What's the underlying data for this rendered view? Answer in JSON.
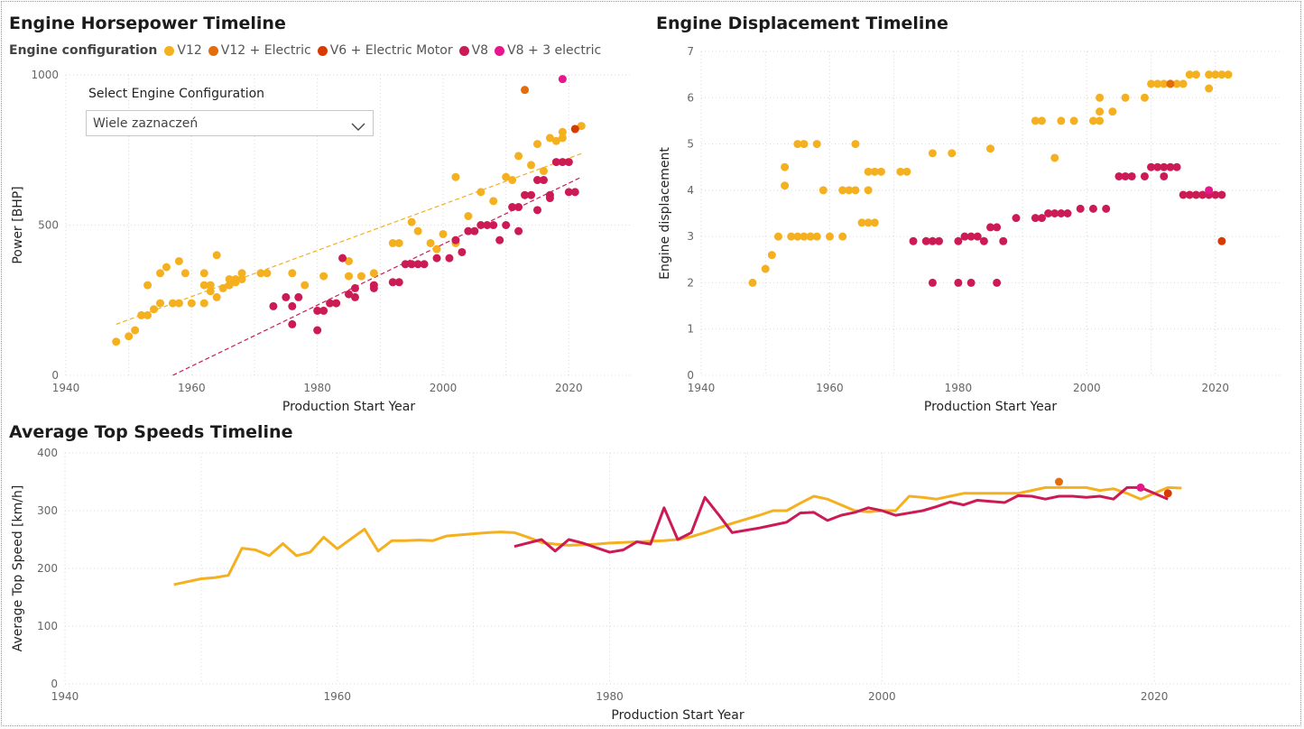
{
  "colors": {
    "V12": "#f5b01f",
    "V12 + Electric": "#e46c0a",
    "V6 + Electric Motor": "#d83b01",
    "V8": "#cc1a55",
    "V8 + 3 electric": "#e8168c"
  },
  "legend": {
    "title": "Engine configuration",
    "items": [
      "V12",
      "V12 + Electric",
      "V6 + Electric Motor",
      "V8",
      "V8 + 3 electric"
    ]
  },
  "slicer": {
    "title": "Select Engine Configuration",
    "value": "Wiele zaznaczeń",
    "icon": "chevron-down-icon"
  },
  "chart_data": [
    {
      "type": "scatter",
      "title": "Engine Horsepower Timeline",
      "xlabel": "Production Start Year",
      "ylabel": "Power [BHP]",
      "xlim": [
        1940,
        2030
      ],
      "ylim": [
        0,
        1000
      ],
      "xticks": [
        1940,
        1960,
        1980,
        2000,
        2020
      ],
      "yticks": [
        0,
        500,
        1000
      ],
      "grid": true,
      "legend_position": "top-left",
      "series": [
        {
          "name": "V12",
          "x": [
            1948,
            1950,
            1951,
            1952,
            1953,
            1953,
            1954,
            1955,
            1955,
            1956,
            1957,
            1958,
            1958,
            1959,
            1960,
            1962,
            1962,
            1962,
            1963,
            1963,
            1964,
            1964,
            1965,
            1966,
            1966,
            1967,
            1967,
            1968,
            1968,
            1971,
            1972,
            1976,
            1978,
            1981,
            1983,
            1985,
            1985,
            1987,
            1989,
            1992,
            1993,
            1995,
            1996,
            1998,
            1999,
            2000,
            2002,
            2002,
            2004,
            2006,
            2008,
            2010,
            2011,
            2012,
            2014,
            2015,
            2016,
            2017,
            2018,
            2019,
            2019,
            2021,
            2022
          ],
          "y": [
            112,
            130,
            150,
            200,
            200,
            300,
            220,
            240,
            340,
            360,
            240,
            240,
            380,
            340,
            240,
            240,
            340,
            300,
            280,
            300,
            260,
            400,
            290,
            320,
            300,
            320,
            310,
            340,
            320,
            340,
            340,
            340,
            300,
            330,
            240,
            330,
            380,
            330,
            340,
            440,
            440,
            510,
            480,
            440,
            420,
            470,
            440,
            660,
            530,
            610,
            580,
            660,
            650,
            730,
            700,
            770,
            680,
            790,
            780,
            810,
            790,
            820,
            830
          ]
        },
        {
          "name": "V12 + Electric",
          "x": [
            2013
          ],
          "y": [
            950
          ]
        },
        {
          "name": "V6 + Electric Motor",
          "x": [
            2021
          ],
          "y": [
            820
          ]
        },
        {
          "name": "V8",
          "x": [
            1973,
            1975,
            1976,
            1976,
            1977,
            1980,
            1980,
            1981,
            1982,
            1983,
            1984,
            1985,
            1986,
            1986,
            1989,
            1989,
            1992,
            1993,
            1994,
            1995,
            1996,
            1997,
            1999,
            2001,
            2002,
            2003,
            2004,
            2005,
            2006,
            2007,
            2008,
            2009,
            2010,
            2011,
            2012,
            2012,
            2013,
            2014,
            2015,
            2015,
            2016,
            2017,
            2017,
            2018,
            2019,
            2020,
            2020,
            2021
          ],
          "y": [
            230,
            260,
            170,
            230,
            260,
            150,
            215,
            215,
            240,
            240,
            390,
            270,
            260,
            290,
            290,
            300,
            310,
            310,
            370,
            370,
            370,
            370,
            390,
            390,
            450,
            410,
            480,
            480,
            500,
            500,
            500,
            450,
            500,
            560,
            560,
            480,
            600,
            600,
            650,
            550,
            650,
            600,
            590,
            710,
            710,
            610,
            710,
            610
          ]
        },
        {
          "name": "V8 + 3 electric",
          "x": [
            2019
          ],
          "y": [
            986
          ]
        }
      ],
      "trendlines": [
        {
          "series": "V12",
          "from": [
            1948,
            170
          ],
          "to": [
            2022,
            738
          ]
        },
        {
          "series": "V8",
          "from": [
            1957,
            0
          ],
          "to": [
            2022,
            660
          ]
        }
      ]
    },
    {
      "type": "scatter",
      "title": "Engine Displacement Timeline",
      "xlabel": "Production Start Year",
      "ylabel": "Engine displacement",
      "xlim": [
        1940,
        2030
      ],
      "ylim": [
        0,
        7
      ],
      "xticks": [
        1940,
        1960,
        1980,
        2000,
        2020
      ],
      "yticks": [
        0,
        1,
        2,
        3,
        4,
        5,
        6,
        7
      ],
      "grid": true,
      "series": [
        {
          "name": "V12",
          "x": [
            1948,
            1950,
            1951,
            1952,
            1953,
            1953,
            1954,
            1955,
            1955,
            1956,
            1956,
            1957,
            1957,
            1958,
            1958,
            1959,
            1960,
            1962,
            1962,
            1963,
            1964,
            1964,
            1965,
            1966,
            1966,
            1966,
            1967,
            1967,
            1968,
            1971,
            1972,
            1976,
            1979,
            1985,
            1992,
            1993,
            1995,
            1996,
            1998,
            2001,
            2002,
            2002,
            2002,
            2004,
            2006,
            2009,
            2010,
            2011,
            2012,
            2013,
            2014,
            2015,
            2016,
            2017,
            2019,
            2019,
            2020,
            2021,
            2022
          ],
          "y": [
            2.0,
            2.3,
            2.6,
            3.0,
            4.1,
            4.5,
            3.0,
            3.0,
            5.0,
            3.0,
            5.0,
            3.0,
            3.0,
            5.0,
            3.0,
            4.0,
            3.0,
            3.0,
            4.0,
            4.0,
            4.0,
            5.0,
            3.3,
            4.0,
            4.4,
            3.3,
            4.4,
            3.3,
            4.4,
            4.4,
            4.4,
            4.8,
            4.8,
            4.9,
            5.5,
            5.5,
            4.7,
            5.5,
            5.5,
            5.5,
            5.5,
            5.7,
            6.0,
            5.7,
            6.0,
            6.0,
            6.3,
            6.3,
            6.3,
            6.3,
            6.3,
            6.3,
            6.5,
            6.5,
            6.2,
            6.5,
            6.5,
            6.5,
            6.5
          ]
        },
        {
          "name": "V12 + Electric",
          "x": [
            2013
          ],
          "y": [
            6.3
          ]
        },
        {
          "name": "V6 + Electric Motor",
          "x": [
            2021
          ],
          "y": [
            2.9
          ]
        },
        {
          "name": "V8",
          "x": [
            1973,
            1975,
            1976,
            1976,
            1977,
            1980,
            1980,
            1981,
            1982,
            1982,
            1983,
            1984,
            1985,
            1986,
            1986,
            1987,
            1989,
            1992,
            1993,
            1994,
            1995,
            1996,
            1997,
            1999,
            2001,
            2003,
            2005,
            2006,
            2007,
            2009,
            2010,
            2011,
            2012,
            2012,
            2013,
            2014,
            2015,
            2016,
            2017,
            2018,
            2019,
            2020,
            2021
          ],
          "y": [
            2.9,
            2.9,
            2.9,
            2.0,
            2.9,
            2.9,
            2.0,
            3.0,
            3.0,
            2.0,
            3.0,
            2.9,
            3.2,
            3.2,
            2.0,
            2.9,
            3.4,
            3.4,
            3.4,
            3.5,
            3.5,
            3.5,
            3.5,
            3.6,
            3.6,
            3.6,
            4.3,
            4.3,
            4.3,
            4.3,
            4.5,
            4.5,
            4.5,
            4.3,
            4.5,
            4.5,
            3.9,
            3.9,
            3.9,
            3.9,
            3.9,
            3.9,
            3.9
          ]
        },
        {
          "name": "V8 + 3 electric",
          "x": [
            2019
          ],
          "y": [
            4.0
          ]
        }
      ]
    },
    {
      "type": "line",
      "title": "Average Top Speeds Timeline",
      "xlabel": "Production Start Year",
      "ylabel": "Average Top Speed [km/h]",
      "xlim": [
        1940,
        2030
      ],
      "ylim": [
        0,
        400
      ],
      "xticks": [
        1940,
        1960,
        1980,
        2000,
        2020
      ],
      "yticks": [
        0,
        100,
        200,
        300,
        400
      ],
      "grid": true,
      "series": [
        {
          "name": "V12",
          "x": [
            1948,
            1949,
            1950,
            1951,
            1952,
            1953,
            1954,
            1955,
            1956,
            1957,
            1958,
            1959,
            1960,
            1961,
            1962,
            1963,
            1964,
            1965,
            1966,
            1967,
            1968,
            1969,
            1970,
            1971,
            1972,
            1973,
            1974,
            1975,
            1976,
            1977,
            1978,
            1979,
            1980,
            1981,
            1982,
            1983,
            1984,
            1985,
            1986,
            1987,
            1988,
            1989,
            1990,
            1991,
            1992,
            1993,
            1994,
            1995,
            1996,
            1997,
            1998,
            1999,
            2000,
            2001,
            2002,
            2003,
            2004,
            2005,
            2006,
            2007,
            2008,
            2009,
            2010,
            2011,
            2012,
            2013,
            2014,
            2015,
            2016,
            2017,
            2018,
            2019,
            2020,
            2021,
            2022
          ],
          "y": [
            172,
            177,
            182,
            184,
            188,
            235,
            232,
            222,
            243,
            222,
            228,
            254,
            234,
            251,
            268,
            230,
            248,
            248,
            249,
            248,
            256,
            258,
            260,
            262,
            263,
            262,
            254,
            245,
            242,
            240,
            241,
            242,
            244,
            245,
            246,
            247,
            248,
            250,
            255,
            262,
            270,
            278,
            285,
            292,
            300,
            300,
            313,
            325,
            320,
            310,
            300,
            298,
            300,
            300,
            325,
            323,
            320,
            325,
            330,
            330,
            330,
            330,
            330,
            335,
            340,
            340,
            340,
            340,
            335,
            338,
            330,
            320,
            330,
            340,
            339
          ]
        },
        {
          "name": "V8",
          "x": [
            1973,
            1975,
            1976,
            1977,
            1978,
            1979,
            1980,
            1981,
            1982,
            1983,
            1984,
            1985,
            1986,
            1987,
            1988,
            1989,
            1990,
            1991,
            1992,
            1993,
            1994,
            1995,
            1996,
            1997,
            1998,
            1999,
            2000,
            2001,
            2002,
            2003,
            2004,
            2005,
            2006,
            2007,
            2008,
            2009,
            2010,
            2011,
            2012,
            2013,
            2014,
            2015,
            2016,
            2017,
            2018,
            2019,
            2020,
            2021
          ],
          "y": [
            238,
            250,
            230,
            250,
            244,
            236,
            228,
            232,
            246,
            242,
            305,
            250,
            262,
            323,
            293,
            262,
            266,
            270,
            275,
            280,
            296,
            297,
            283,
            292,
            297,
            305,
            300,
            292,
            296,
            300,
            307,
            315,
            310,
            318,
            316,
            314,
            326,
            325,
            320,
            325,
            325,
            323,
            325,
            320,
            340,
            340,
            330,
            320
          ]
        },
        {
          "name": "V12 + Electric",
          "x": [
            2013
          ],
          "y": [
            350
          ]
        },
        {
          "name": "V6 + Electric Motor",
          "x": [
            2021
          ],
          "y": [
            330
          ]
        },
        {
          "name": "V8 + 3 electric",
          "x": [
            2019
          ],
          "y": [
            340
          ]
        }
      ]
    }
  ]
}
